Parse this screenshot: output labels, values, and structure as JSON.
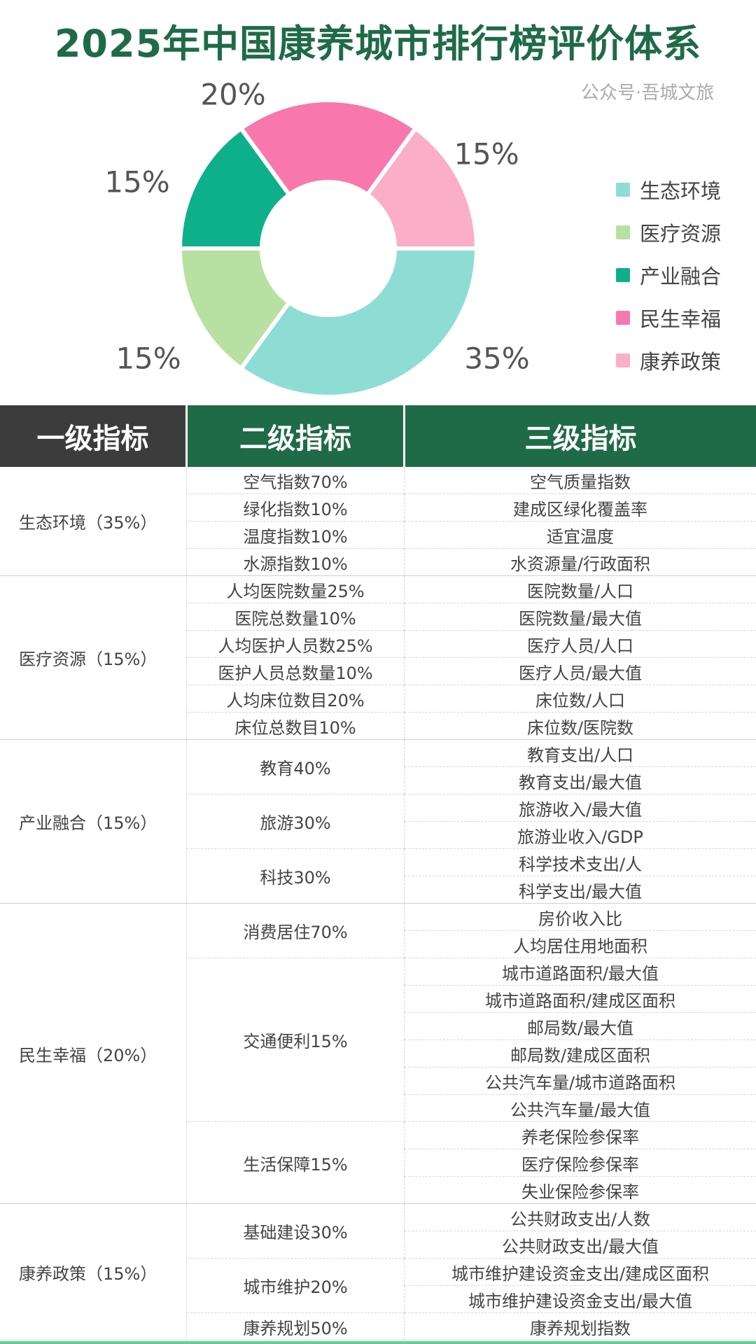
{
  "title": "2025年中国康养城市排行榜评价体系",
  "chart_data": {
    "type": "pie",
    "donut": true,
    "title": "2025年中国康养城市排行榜评价体系",
    "legend_position": "right",
    "slices": [
      {
        "name": "生态环境",
        "value": 35,
        "label": "35%",
        "color": "#8EDDD5"
      },
      {
        "name": "医疗资源",
        "value": 15,
        "label": "15%",
        "color": "#B8E0A3"
      },
      {
        "name": "产业融合",
        "value": 15,
        "label": "15%",
        "color": "#0DB08A"
      },
      {
        "name": "民生幸福",
        "value": 20,
        "label": "20%",
        "color": "#F878AD"
      },
      {
        "name": "康养政策",
        "value": 15,
        "label": "15%",
        "color": "#FBAEC7"
      }
    ]
  },
  "table": {
    "headers": [
      "一级指标",
      "二级指标",
      "三级指标"
    ],
    "groups": [
      {
        "label": "生态环境（35%）",
        "subs": [
          {
            "label": "空气指数70%",
            "items": [
              "空气质量指数"
            ]
          },
          {
            "label": "绿化指数10%",
            "items": [
              "建成区绿化覆盖率"
            ]
          },
          {
            "label": "温度指数10%",
            "items": [
              "适宜温度"
            ]
          },
          {
            "label": "水源指数10%",
            "items": [
              "水资源量/行政面积"
            ]
          }
        ]
      },
      {
        "label": "医疗资源（15%）",
        "subs": [
          {
            "label": "人均医院数量25%",
            "items": [
              "医院数量/人口"
            ]
          },
          {
            "label": "医院总数量10%",
            "items": [
              "医院数量/最大值"
            ]
          },
          {
            "label": "人均医护人员数25%",
            "items": [
              "医疗人员/人口"
            ]
          },
          {
            "label": "医护人员总数量10%",
            "items": [
              "医疗人员/最大值"
            ]
          },
          {
            "label": "人均床位数目20%",
            "items": [
              "床位数/人口"
            ]
          },
          {
            "label": "床位总数目10%",
            "items": [
              "床位数/医院数"
            ]
          }
        ]
      },
      {
        "label": "产业融合（15%）",
        "subs": [
          {
            "label": "教育40%",
            "items": [
              "教育支出/人口",
              "教育支出/最大值"
            ]
          },
          {
            "label": "旅游30%",
            "items": [
              "旅游收入/最大值",
              "旅游业收入/GDP"
            ]
          },
          {
            "label": "科技30%",
            "items": [
              "科学技术支出/人",
              "科学支出/最大值"
            ]
          }
        ]
      },
      {
        "label": "民生幸福（20%）",
        "subs": [
          {
            "label": "消费居住70%",
            "items": [
              "房价收入比",
              "人均居住用地面积"
            ]
          },
          {
            "label": "交通便利15%",
            "items": [
              "城市道路面积/最大值",
              "城市道路面积/建成区面积",
              "邮局数/最大值",
              "邮局数/建成区面积",
              "公共汽车量/城市道路面积",
              "公共汽车量/最大值"
            ]
          },
          {
            "label": "生活保障15%",
            "items": [
              "养老保险参保率",
              "医疗保险参保率",
              "失业保险参保率"
            ]
          }
        ]
      },
      {
        "label": "康养政策（15%）",
        "subs": [
          {
            "label": "基础建设30%",
            "items": [
              "公共财政支出/人数",
              "公共财政支出/最大值"
            ]
          },
          {
            "label": "城市维护20%",
            "items": [
              "城市维护建设资金支出/建成区面积",
              "城市维护建设资金支出/最大值"
            ]
          },
          {
            "label": "康养规划50%",
            "items": [
              "康养规划指数"
            ]
          }
        ]
      }
    ]
  },
  "watermark": "公众号·吾城文旅"
}
